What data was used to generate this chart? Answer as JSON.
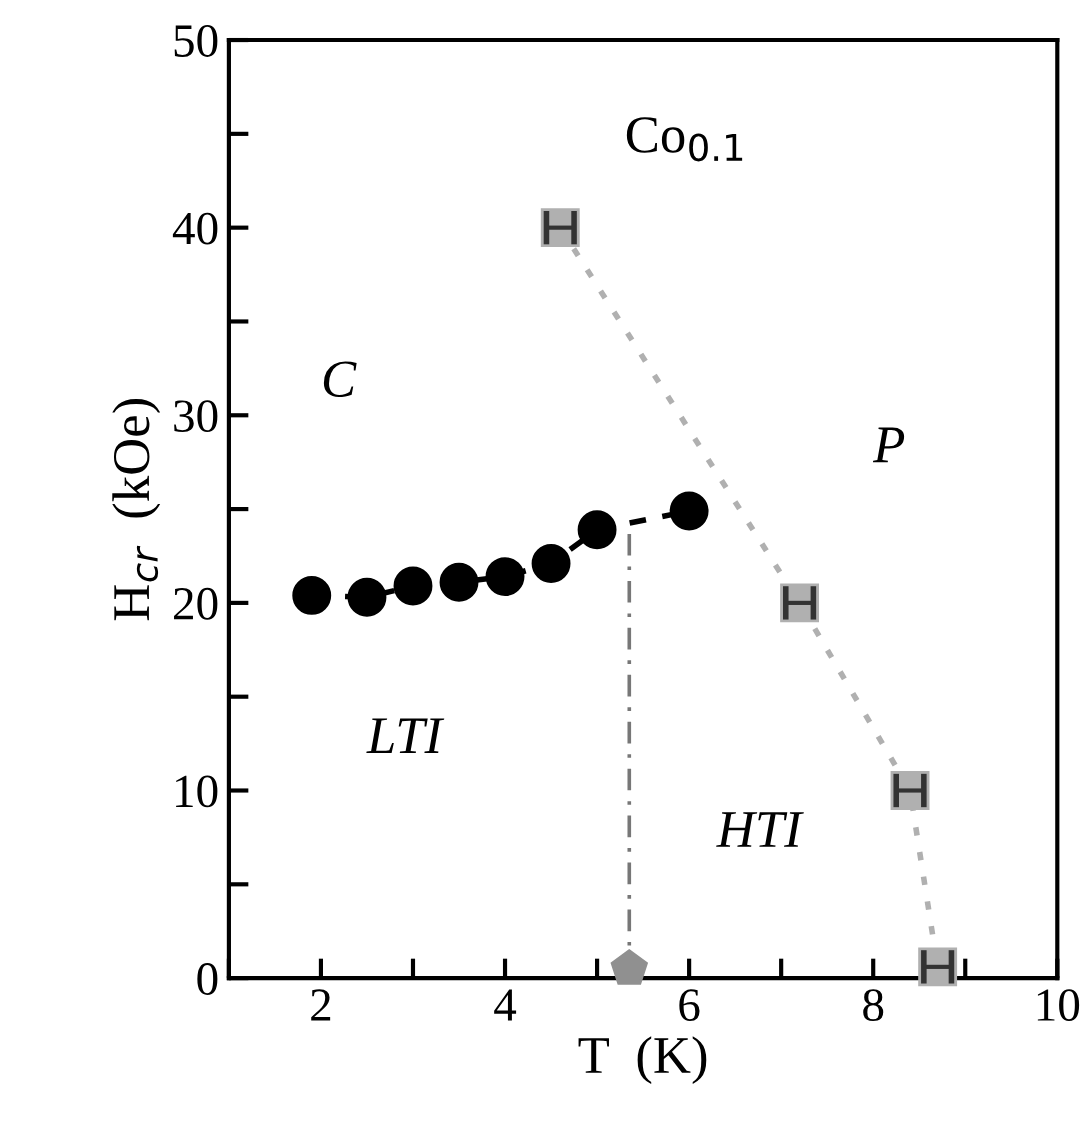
{
  "chart_data": {
    "type": "scatter",
    "xlabel": "T  (K)",
    "ylabel": "H$_{cr}$  (kOe)",
    "xlim": [
      1,
      10
    ],
    "ylim": [
      0,
      50
    ],
    "xticks": [
      {
        "value": 1,
        "label": null
      },
      2,
      {
        "value": 3,
        "label": null
      },
      4,
      {
        "value": 5,
        "label": null
      },
      6,
      {
        "value": 7,
        "label": null
      },
      8,
      {
        "value": 9,
        "label": null
      },
      10
    ],
    "yticks": [
      0,
      {
        "value": 5,
        "label": null
      },
      10,
      {
        "value": 15,
        "label": null
      },
      20,
      {
        "value": 25,
        "label": null
      },
      30,
      {
        "value": 35,
        "label": null
      },
      40,
      {
        "value": 45,
        "label": null
      },
      50
    ],
    "grid": false,
    "series": [
      {
        "x": [
          1.9,
          2.5,
          3.0,
          3.5,
          4.0,
          4.5,
          5.0,
          6.0
        ],
        "values": [
          20.4,
          20.3,
          20.9,
          21.1,
          21.4,
          22.1,
          23.9,
          24.9
        ],
        "color": "#000000",
        "type": "line",
        "marker": "circle",
        "line_style": "dashed"
      },
      {
        "x": [
          4.6,
          7.2,
          8.4,
          8.7
        ],
        "values": [
          40,
          20,
          10,
          0.6
        ],
        "xerrors": [
          0.15,
          0.15,
          0.15,
          0.15
        ],
        "color": "#b0b0b0",
        "type": "line",
        "marker": "square",
        "line_style": "dotted"
      },
      {
        "x": [
          5.35
        ],
        "values": [
          0.5
        ],
        "color": "#909090"
      }
    ],
    "ref_lines": [
      {
        "axis": "x",
        "value": 5.35,
        "color": "#777777",
        "line_style": "dashdot"
      }
    ],
    "annotations": [
      "Co$_{0.1}$",
      "C",
      "P",
      "LTI",
      "HTI"
    ]
  }
}
